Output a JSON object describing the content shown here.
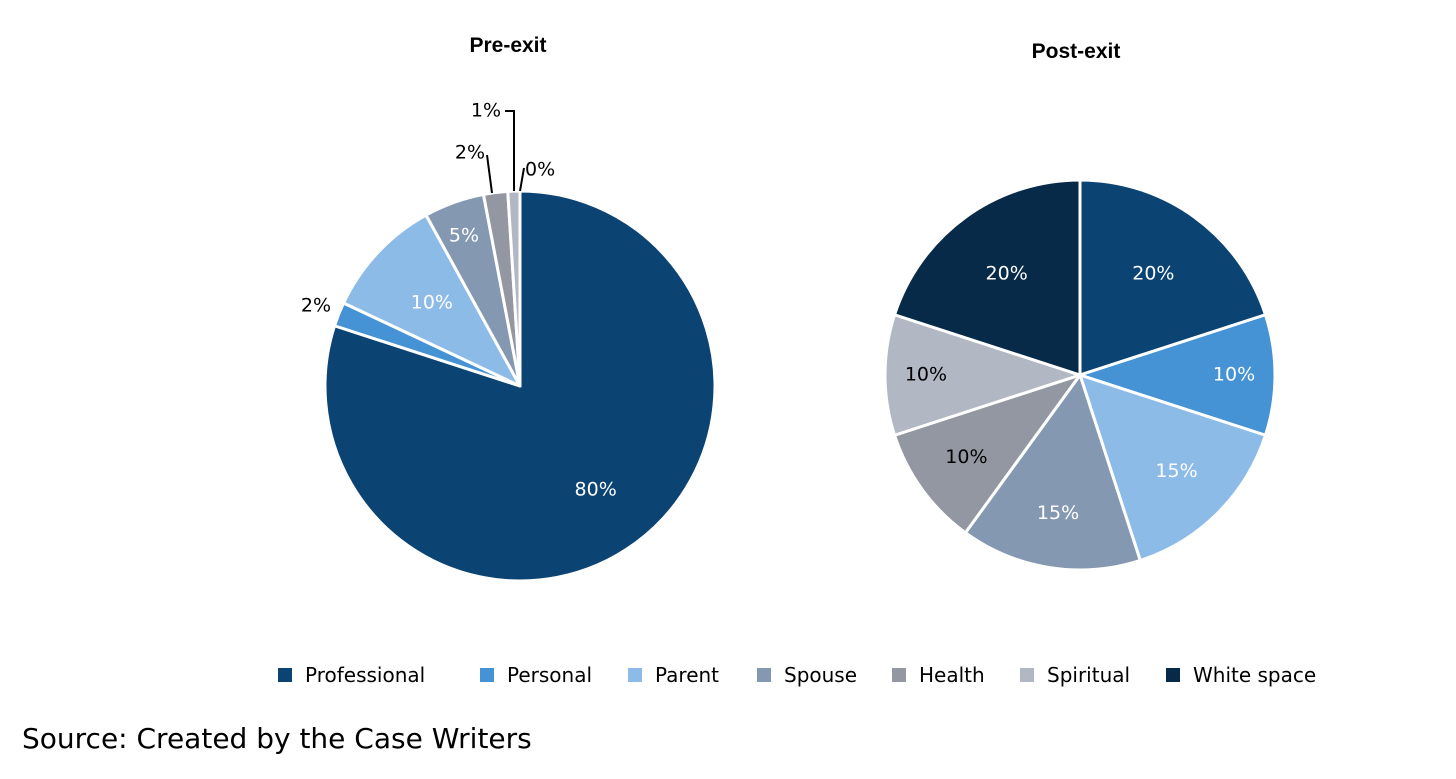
{
  "source_note": "Source: Created by the Case Writers",
  "chart_data": [
    {
      "type": "pie",
      "title": "Pre-exit",
      "categories": [
        "Professional",
        "Personal",
        "Parent",
        "Spouse",
        "Health",
        "Spiritual",
        "White space"
      ],
      "values": [
        80,
        2,
        10,
        5,
        2,
        1,
        0
      ],
      "labels": [
        "80%",
        "2%",
        "10%",
        "5%",
        "2%",
        "1%",
        "0%"
      ],
      "colors": [
        "#0b4473",
        "#4592d5",
        "#8dbbe8",
        "#8499b1",
        "#9297a1",
        "#b2b7c4",
        "#072a48"
      ],
      "start": "12 o'clock, clockwise"
    },
    {
      "type": "pie",
      "title": "Post-exit",
      "categories": [
        "Professional",
        "Personal",
        "Parent",
        "Spouse",
        "Health",
        "Spiritual",
        "White space"
      ],
      "values": [
        20,
        10,
        15,
        15,
        10,
        10,
        20
      ],
      "labels": [
        "20%",
        "10%",
        "15%",
        "15%",
        "10%",
        "10%",
        "20%"
      ],
      "colors": [
        "#0b4473",
        "#4592d5",
        "#8dbbe8",
        "#8499b1",
        "#9297a1",
        "#b2b7c4",
        "#072a48"
      ],
      "start": "12 o'clock, clockwise"
    }
  ],
  "legend": [
    {
      "label": "Professional",
      "color": "#0b4473"
    },
    {
      "label": "Personal",
      "color": "#4592d5"
    },
    {
      "label": "Parent",
      "color": "#8dbbe8"
    },
    {
      "label": "Spouse",
      "color": "#8499b1"
    },
    {
      "label": "Health",
      "color": "#9297a1"
    },
    {
      "label": "Spiritual",
      "color": "#b2b7c4"
    },
    {
      "label": "White space",
      "color": "#072a48"
    }
  ]
}
